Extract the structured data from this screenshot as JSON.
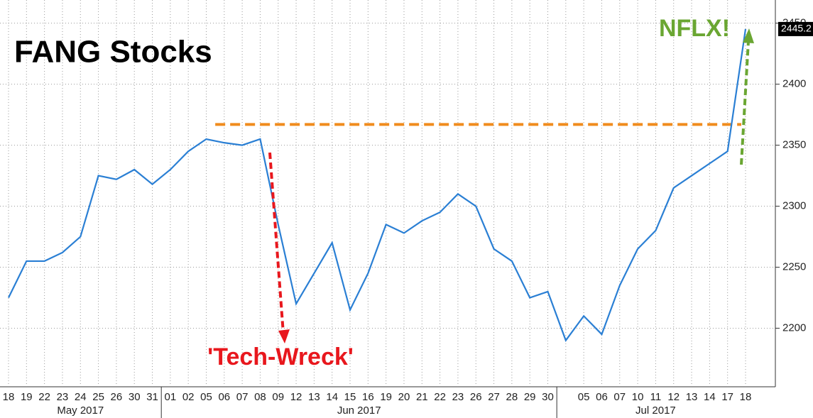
{
  "chart_data": {
    "type": "line",
    "title": "FANG Stocks",
    "categories": [
      "18",
      "19",
      "22",
      "23",
      "24",
      "25",
      "26",
      "30",
      "31",
      "01",
      "02",
      "05",
      "06",
      "07",
      "08",
      "09",
      "12",
      "13",
      "14",
      "15",
      "16",
      "19",
      "20",
      "21",
      "22",
      "23",
      "26",
      "27",
      "28",
      "29",
      "30",
      null,
      "05",
      "06",
      "07",
      "10",
      "11",
      "12",
      "13",
      "14",
      "17",
      "18"
    ],
    "months": [
      {
        "label": "May 2017",
        "from": 0,
        "to": 8
      },
      {
        "label": "Jun 2017",
        "from": 9,
        "to": 30
      },
      {
        "label": "Jul 2017",
        "from": 31,
        "to": 41
      }
    ],
    "values": [
      2225,
      2255,
      2255,
      2262,
      2275,
      2325,
      2322,
      2330,
      2318,
      2330,
      2345,
      2355,
      2352,
      2350,
      2355,
      2285,
      2220,
      2245,
      2270,
      2215,
      2245,
      2285,
      2278,
      2288,
      2295,
      2310,
      2300,
      2265,
      2255,
      2225,
      2230,
      2190,
      2210,
      2195,
      2235,
      2265,
      2280,
      2315,
      2325,
      2335,
      2345,
      2445.2
    ],
    "color": "#2a7fd4",
    "ylim": [
      2152,
      2469
    ],
    "yticks": [
      2200,
      2250,
      2300,
      2350,
      2400,
      2450
    ],
    "grid": true,
    "reference_line": {
      "value": 2367,
      "color": "#f08c1e"
    },
    "annotations": [
      {
        "text": "'Tech-Wreck'",
        "color": "#e8171d"
      },
      {
        "text": "NFLX!",
        "color": "#6aa632"
      }
    ]
  }
}
